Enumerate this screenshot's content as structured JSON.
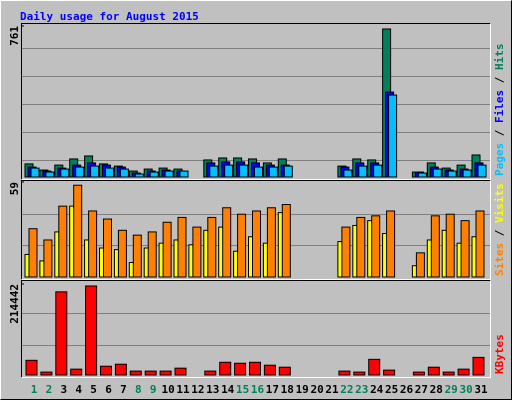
{
  "chart_data": [
    {
      "type": "bar",
      "title": "Daily usage for August 2015",
      "ylim": [
        0,
        761
      ],
      "yticks": [
        761
      ],
      "legend_separator": " / ",
      "series": [
        {
          "name": "Hits",
          "color": "#00805c",
          "values": [
            66,
            35,
            60,
            91,
            106,
            66,
            55,
            30,
            40,
            45,
            40,
            0,
            86,
            96,
            96,
            91,
            71,
            91,
            0,
            0,
            0,
            55,
            91,
            86,
            746,
            0,
            25,
            71,
            45,
            60,
            111
          ]
        },
        {
          "name": "Files",
          "color": "#0000ff",
          "values": [
            50,
            30,
            45,
            60,
            71,
            60,
            50,
            20,
            30,
            35,
            30,
            0,
            71,
            76,
            76,
            71,
            60,
            60,
            0,
            0,
            0,
            50,
            71,
            71,
            428,
            0,
            25,
            50,
            35,
            40,
            71
          ]
        },
        {
          "name": "Pages",
          "color": "#00c0ff",
          "values": [
            45,
            25,
            40,
            50,
            55,
            45,
            40,
            15,
            25,
            30,
            30,
            0,
            55,
            60,
            60,
            50,
            50,
            55,
            0,
            0,
            0,
            35,
            55,
            60,
            413,
            0,
            20,
            40,
            30,
            35,
            60
          ]
        }
      ]
    },
    {
      "type": "bar",
      "ylim": [
        0,
        59
      ],
      "yticks": [
        59
      ],
      "legend_separator": " / ",
      "series": [
        {
          "name": "Visits",
          "color": "#ffff00",
          "values": [
            14,
            10,
            28,
            44,
            23,
            18,
            17,
            9,
            18,
            21,
            23,
            20,
            29,
            31,
            16,
            25,
            21,
            40,
            0,
            0,
            0,
            22,
            32,
            35,
            27,
            0,
            7,
            23,
            29,
            21,
            25
          ]
        },
        {
          "name": "Sites",
          "color": "#ff8000",
          "values": [
            30,
            23,
            44,
            57,
            41,
            36,
            29,
            26,
            28,
            34,
            37,
            31,
            37,
            43,
            39,
            41,
            43,
            45,
            0,
            0,
            0,
            31,
            37,
            38,
            41,
            0,
            15,
            38,
            39,
            35,
            41
          ]
        }
      ]
    },
    {
      "type": "bar",
      "ylim": [
        0,
        214442
      ],
      "yticks": [
        214442
      ],
      "categories": [
        "1",
        "2",
        "3",
        "4",
        "5",
        "6",
        "7",
        "8",
        "9",
        "10",
        "11",
        "12",
        "13",
        "14",
        "15",
        "16",
        "17",
        "18",
        "19",
        "20",
        "21",
        "22",
        "23",
        "24",
        "25",
        "26",
        "27",
        "28",
        "29",
        "30",
        "31"
      ],
      "category_colors": [
        "#00805c",
        "#00805c",
        "#000000",
        "#000000",
        "#000000",
        "#000000",
        "#000000",
        "#00805c",
        "#00805c",
        "#000000",
        "#000000",
        "#000000",
        "#000000",
        "#000000",
        "#00805c",
        "#00805c",
        "#000000",
        "#000000",
        "#000000",
        "#000000",
        "#000000",
        "#00805c",
        "#00805c",
        "#000000",
        "#000000",
        "#000000",
        "#000000",
        "#000000",
        "#00805c",
        "#00805c",
        "#000000"
      ],
      "series": [
        {
          "name": "KBytes",
          "color": "#ff0000",
          "values": [
            34600,
            6900,
            196000,
            13800,
            209800,
            20700,
            25400,
            9200,
            9200,
            9200,
            16100,
            0,
            9200,
            30000,
            27700,
            30000,
            23100,
            18400,
            0,
            0,
            0,
            9200,
            6900,
            36900,
            11500,
            0,
            6900,
            18400,
            6900,
            13800,
            41500
          ]
        }
      ]
    }
  ]
}
